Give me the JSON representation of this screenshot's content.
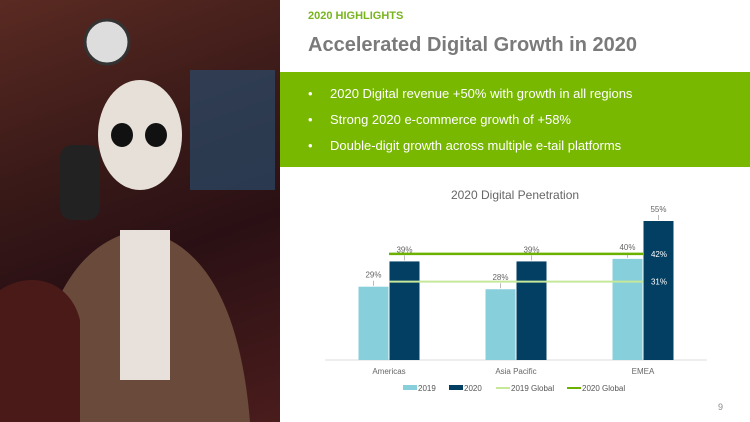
{
  "kicker": "2020 HIGHLIGHTS",
  "title": "Accelerated Digital Growth in 2020",
  "bullets": [
    "2020 Digital revenue +50% with growth in all regions",
    "Strong 2020 e-commerce growth of +58%",
    "Double-digit growth across multiple e-tail platforms"
  ],
  "page_number": "9",
  "colors": {
    "green": "#78b800",
    "light_bar": "#88cfdc",
    "dark_bar": "#033f63",
    "global2019": "#c5e89a",
    "global2020": "#6cb000"
  },
  "chart_data": {
    "type": "bar",
    "title": "2020 Digital Penetration",
    "categories": [
      "Americas",
      "Asia Pacific",
      "EMEA"
    ],
    "series": [
      {
        "name": "2019",
        "values": [
          29,
          28,
          40
        ],
        "labels": [
          "29%",
          "28%",
          "40%"
        ]
      },
      {
        "name": "2020",
        "values": [
          39,
          39,
          55
        ],
        "labels": [
          "39%",
          "39%",
          "55%"
        ]
      }
    ],
    "reference_lines": [
      {
        "name": "2019 Global",
        "value": 31,
        "label": "31%"
      },
      {
        "name": "2020 Global",
        "value": 42,
        "label": "42%"
      }
    ],
    "ylim": [
      0,
      55
    ],
    "legend": "bottom",
    "grid": false
  }
}
